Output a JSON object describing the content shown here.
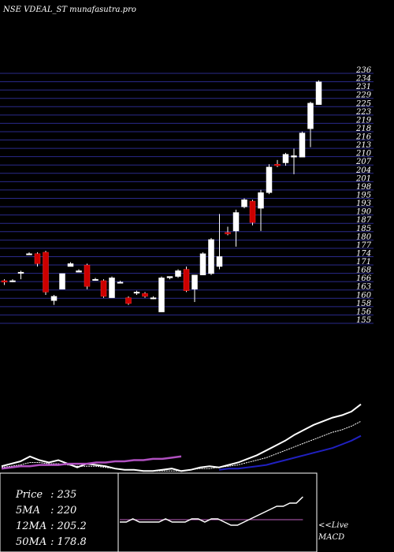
{
  "title": "NSE VDEAL_ST munafasutra.pro",
  "colors": {
    "background": "#000000",
    "grid": "#2a2a8a",
    "up_candle": "#ffffff",
    "down_candle": "#cc0000",
    "ma_short": "#ffffff",
    "ma_long": "#2020c0",
    "ma_violet": "#b050c0",
    "macd_signal": "#c060c0"
  },
  "chart_data": [
    {
      "type": "candlestick",
      "title": "NSE VDEAL_ST munafasutra.pro",
      "y_tick_labels": [
        "236",
        "234",
        "231",
        "229",
        "225",
        "223",
        "219",
        "218",
        "216",
        "213",
        "210",
        "207",
        "204",
        "201",
        "198",
        "195",
        "193",
        "190",
        "187",
        "185",
        "180",
        "177",
        "174",
        "171",
        "168",
        "166",
        "163",
        "160",
        "158",
        "156",
        "155"
      ],
      "ylim": [
        150,
        238
      ],
      "grid": true,
      "candles": [
        {
          "o": 165.0,
          "h": 165.5,
          "l": 163.5,
          "c": 164.5
        },
        {
          "o": 165.0,
          "h": 165.5,
          "l": 164.5,
          "c": 165.0
        },
        {
          "o": 167.8,
          "h": 168.5,
          "l": 165.5,
          "c": 168.0
        },
        {
          "o": 174.5,
          "h": 175.0,
          "l": 174.0,
          "c": 174.5
        },
        {
          "o": 174.5,
          "h": 175.0,
          "l": 170.0,
          "c": 171.0
        },
        {
          "o": 175.0,
          "h": 175.5,
          "l": 160.0,
          "c": 161.0
        },
        {
          "o": 158.0,
          "h": 160.0,
          "l": 156.5,
          "c": 159.5
        },
        {
          "o": 162.0,
          "h": 167.0,
          "l": 162.0,
          "c": 167.5
        },
        {
          "o": 170.0,
          "h": 171.5,
          "l": 170.0,
          "c": 171.0
        },
        {
          "o": 168.0,
          "h": 169.0,
          "l": 168.0,
          "c": 168.5
        },
        {
          "o": 170.5,
          "h": 171.0,
          "l": 162.0,
          "c": 163.0
        },
        {
          "o": 165.5,
          "h": 166.0,
          "l": 165.0,
          "c": 165.5
        },
        {
          "o": 165.0,
          "h": 165.5,
          "l": 159.0,
          "c": 159.5
        },
        {
          "o": 159.0,
          "h": 166.5,
          "l": 159.0,
          "c": 166.0
        },
        {
          "o": 164.5,
          "h": 165.0,
          "l": 164.5,
          "c": 164.5
        },
        {
          "o": 159.0,
          "h": 159.5,
          "l": 156.5,
          "c": 157.0
        },
        {
          "o": 161.0,
          "h": 161.5,
          "l": 160.0,
          "c": 161.0
        },
        {
          "o": 160.5,
          "h": 161.0,
          "l": 159.0,
          "c": 159.5
        },
        {
          "o": 159.0,
          "h": 159.5,
          "l": 158.5,
          "c": 159.0
        },
        {
          "o": 154.0,
          "h": 166.5,
          "l": 154.0,
          "c": 166.0
        },
        {
          "o": 166.0,
          "h": 166.5,
          "l": 165.5,
          "c": 166.5
        },
        {
          "o": 166.5,
          "h": 169.0,
          "l": 166.0,
          "c": 168.5
        },
        {
          "o": 169.0,
          "h": 170.0,
          "l": 161.0,
          "c": 161.5
        },
        {
          "o": 162.0,
          "h": 167.0,
          "l": 157.5,
          "c": 167.0
        },
        {
          "o": 167.0,
          "h": 175.0,
          "l": 167.0,
          "c": 174.5
        },
        {
          "o": 167.5,
          "h": 180.0,
          "l": 167.0,
          "c": 179.5
        },
        {
          "o": 170.0,
          "h": 188.5,
          "l": 169.0,
          "c": 173.5
        },
        {
          "o": 182.0,
          "h": 184.0,
          "l": 181.0,
          "c": 181.5
        },
        {
          "o": 182.5,
          "h": 190.0,
          "l": 177.0,
          "c": 189.0
        },
        {
          "o": 191.0,
          "h": 194.0,
          "l": 190.5,
          "c": 193.5
        },
        {
          "o": 193.0,
          "h": 193.5,
          "l": 184.5,
          "c": 185.5
        },
        {
          "o": 190.5,
          "h": 197.0,
          "l": 182.5,
          "c": 196.0
        },
        {
          "o": 196.0,
          "h": 206.0,
          "l": 195.5,
          "c": 205.0
        },
        {
          "o": 206.0,
          "h": 207.5,
          "l": 205.0,
          "c": 205.5
        },
        {
          "o": 206.5,
          "h": 210.0,
          "l": 205.5,
          "c": 209.5
        },
        {
          "o": 208.5,
          "h": 211.5,
          "l": 202.5,
          "c": 209.0
        },
        {
          "o": 208.5,
          "h": 217.5,
          "l": 208.5,
          "c": 217.0
        },
        {
          "o": 218.5,
          "h": 228.0,
          "l": 212.0,
          "c": 227.5
        },
        {
          "o": 227.0,
          "h": 235.5,
          "l": 227.0,
          "c": 235.0
        }
      ]
    },
    {
      "type": "line",
      "series": [
        {
          "name": "ma_short",
          "values": [
            149,
            151,
            153,
            157,
            154,
            152,
            154,
            151,
            148,
            151,
            150,
            149,
            147,
            146,
            146,
            145,
            145,
            146,
            147,
            145,
            146,
            148,
            149,
            148,
            150,
            152,
            155,
            158,
            162,
            166,
            170,
            175,
            179,
            183,
            186,
            189,
            191,
            194,
            200
          ]
        },
        {
          "name": "ma_short_2",
          "values": [
            148,
            149,
            150,
            152,
            152,
            151,
            151,
            150,
            149,
            149,
            149,
            148,
            147,
            146,
            146,
            145,
            145,
            145,
            145,
            145,
            146,
            147,
            147,
            148,
            149,
            150,
            152,
            154,
            156,
            159,
            162,
            165,
            168,
            171,
            174,
            177,
            179,
            182,
            186
          ]
        },
        {
          "name": "ma_long",
          "values": [
            null,
            null,
            null,
            null,
            null,
            null,
            null,
            null,
            null,
            null,
            null,
            null,
            null,
            null,
            null,
            null,
            null,
            null,
            null,
            null,
            null,
            null,
            null,
            146,
            147,
            147,
            148,
            149,
            150,
            152,
            154,
            156,
            158,
            160,
            162,
            164,
            167,
            170,
            174
          ]
        },
        {
          "name": "ma_violet",
          "values": [
            147,
            148,
            149,
            149,
            150,
            150,
            150,
            151,
            151,
            151,
            152,
            152,
            153,
            153,
            154,
            154,
            155,
            155,
            156,
            157,
            null,
            null,
            null,
            null,
            null,
            null,
            null,
            null,
            null,
            null,
            null,
            null,
            null,
            null,
            null,
            null,
            null,
            null,
            null
          ]
        }
      ]
    },
    {
      "type": "line",
      "label": "MACD",
      "series": [
        {
          "name": "macd",
          "values": [
            5,
            5,
            6,
            5,
            5,
            5,
            5,
            6,
            5,
            5,
            5,
            6,
            6,
            5,
            6,
            6,
            5,
            4,
            4,
            5,
            6,
            7,
            8,
            9,
            10,
            10,
            11,
            11,
            13
          ]
        },
        {
          "name": "signal",
          "values": [
            6,
            6,
            6,
            6,
            6,
            6,
            6,
            6,
            6,
            6,
            6,
            6,
            6,
            6,
            6,
            6,
            6,
            6,
            6,
            6,
            6,
            6,
            6,
            6,
            6,
            6,
            6,
            6,
            6
          ]
        }
      ]
    }
  ],
  "info_panel": {
    "price_label": "Price",
    "price_value": ": 235",
    "ma5_label": "5MA",
    "ma5_value": ": 220",
    "ma12_label": "12MA",
    "ma12_value": ": 205.2",
    "ma50_label": "50MA",
    "ma50_value": ": 178.8"
  },
  "macd_panel": {
    "live_label": "<<Live",
    "macd_label": "MACD"
  }
}
